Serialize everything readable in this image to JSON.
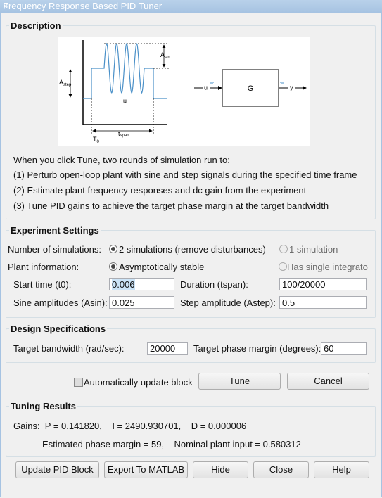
{
  "window": {
    "title": "Frequency Response Based PID Tuner"
  },
  "description": {
    "title": "Description",
    "figure": {
      "a_step": {
        "text": "A",
        "sub": "step"
      },
      "a_sin": {
        "text": "A",
        "sub": "sin"
      },
      "signal": "u",
      "t0": {
        "text": "T",
        "sub": "0"
      },
      "t_span": {
        "text": "t",
        "sub": "span"
      },
      "block": "G",
      "input": "u",
      "output": "y"
    },
    "lines": [
      "When you click Tune, two rounds of simulation run to:",
      "(1) Perturb open-loop plant with sine and step signals during the specified time frame",
      "(2) Estimate plant frequency responses and dc gain from the experiment",
      "(3) Tune PID gains to achieve the target phase margin at the target bandwidth"
    ]
  },
  "experiment": {
    "title": "Experiment Settings",
    "simulations": {
      "label": "Number of simulations:",
      "options": [
        "2 simulations (remove disturbances)",
        "1 simulation"
      ]
    },
    "plant": {
      "label": "Plant information:",
      "options": [
        "Asymptotically stable",
        "Has single integrato"
      ]
    },
    "start_time": {
      "label": "Start time (t0):",
      "value": "0.006"
    },
    "duration": {
      "label": "Duration (tspan):",
      "value": "100/20000"
    },
    "sine_amplitude": {
      "label": "Sine amplitudes (Asin):",
      "value": "0.025"
    },
    "step_amplitude": {
      "label": "Step amplitude (Astep):",
      "value": "0.5"
    }
  },
  "design": {
    "title": "Design Specifications",
    "bandwidth": {
      "label": "Target bandwidth (rad/sec):",
      "value": "20000"
    },
    "phase_margin": {
      "label": "Target phase margin (degrees):",
      "value": "60"
    }
  },
  "actions": {
    "auto_update": "Automatically update block",
    "tune": "Tune",
    "cancel": "Cancel"
  },
  "results": {
    "title": "Tuning Results",
    "gains": "Gains:  P = 0.141820,    I = 2490.930701,    D = 0.000006",
    "summary": "Estimated phase margin = 59,    Nominal plant input = 0.580312"
  },
  "buttons": [
    "Update PID Block",
    "Export To MATLAB",
    "Hide",
    "Close",
    "Help"
  ]
}
